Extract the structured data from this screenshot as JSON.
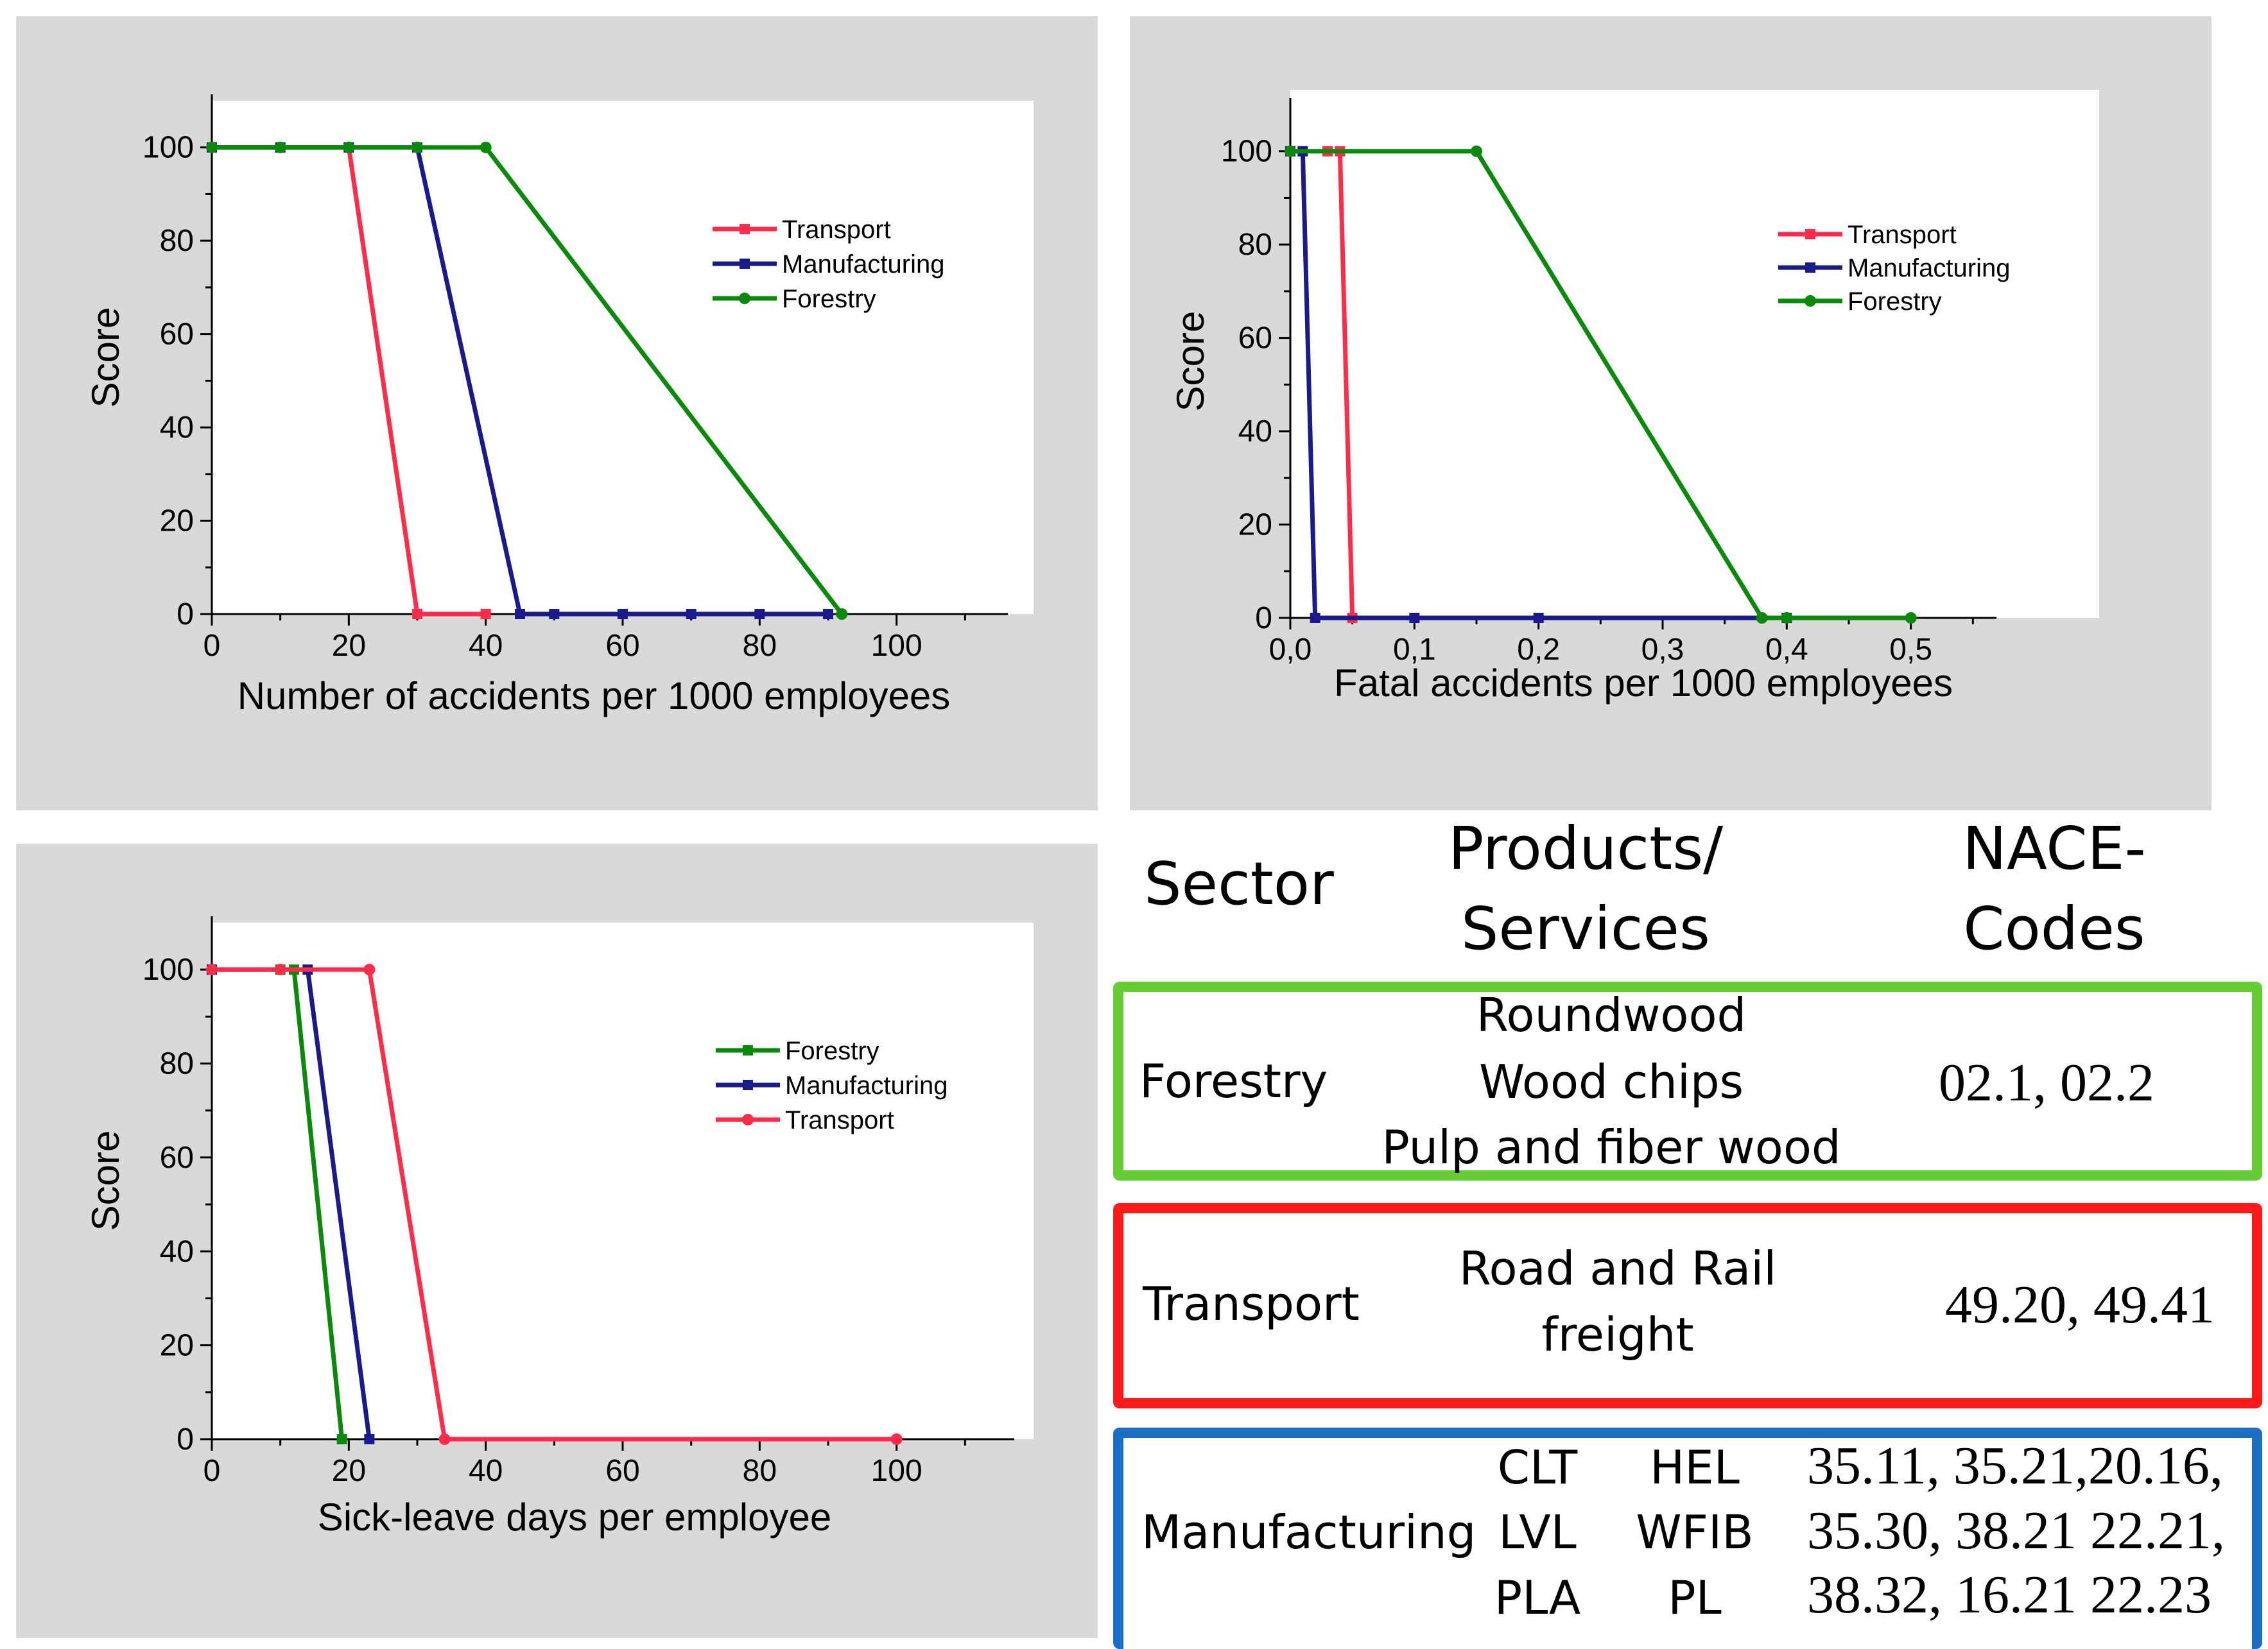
{
  "chart_data": [
    {
      "type": "line",
      "panel": "top-left",
      "xlabel": "Number of accidents per 1000 employees",
      "ylabel": "Score",
      "xlim": [
        0,
        120
      ],
      "ylim": [
        0,
        110
      ],
      "xticks": [
        0,
        20,
        40,
        60,
        80,
        100
      ],
      "yticks": [
        0,
        20,
        40,
        60,
        80,
        100
      ],
      "legend_position": "top-right",
      "series": [
        {
          "name": "Transport",
          "color": "#ff2b4a",
          "marker": "square",
          "points": [
            [
              0,
              100
            ],
            [
              10,
              100
            ],
            [
              20,
              100
            ],
            [
              30,
              0
            ],
            [
              40,
              0
            ]
          ]
        },
        {
          "name": "Manufacturing",
          "color": "#1a1a8c",
          "marker": "square",
          "points": [
            [
              0,
              100
            ],
            [
              10,
              100
            ],
            [
              20,
              100
            ],
            [
              30,
              100
            ],
            [
              45,
              0
            ],
            [
              50,
              0
            ],
            [
              60,
              0
            ],
            [
              70,
              0
            ],
            [
              80,
              0
            ],
            [
              90,
              0
            ]
          ]
        },
        {
          "name": "Forestry",
          "color": "#0a8a0a",
          "marker": "circle",
          "points": [
            [
              0,
              100
            ],
            [
              10,
              100
            ],
            [
              20,
              100
            ],
            [
              30,
              100
            ],
            [
              40,
              100
            ],
            [
              92,
              0
            ]
          ]
        }
      ]
    },
    {
      "type": "line",
      "panel": "top-right",
      "xlabel": "Fatal accidents per 1000 employees",
      "ylabel": "Score",
      "xlim": [
        0,
        0.6
      ],
      "ylim": [
        0,
        110
      ],
      "xticks": [
        0,
        0.1,
        0.2,
        0.3,
        0.4,
        0.5
      ],
      "xtick_labels": [
        "0,0",
        "0,1",
        "0,2",
        "0,3",
        "0,4",
        "0,5"
      ],
      "yticks": [
        0,
        20,
        40,
        60,
        80,
        100
      ],
      "legend_position": "top-right",
      "series": [
        {
          "name": "Transport",
          "color": "#ff2b4a",
          "marker": "square",
          "points": [
            [
              0.03,
              100
            ],
            [
              0.04,
              100
            ],
            [
              0.05,
              0
            ]
          ]
        },
        {
          "name": "Manufacturing",
          "color": "#1a1a8c",
          "marker": "square",
          "points": [
            [
              0,
              100
            ],
            [
              0.01,
              100
            ],
            [
              0.02,
              0
            ],
            [
              0.1,
              0
            ],
            [
              0.2,
              0
            ],
            [
              0.4,
              0
            ]
          ]
        },
        {
          "name": "Forestry",
          "color": "#0a8a0a",
          "marker": "circle",
          "points": [
            [
              0,
              100
            ],
            [
              0.15,
              100
            ],
            [
              0.38,
              0
            ],
            [
              0.4,
              0
            ],
            [
              0.5,
              0
            ]
          ]
        }
      ]
    },
    {
      "type": "line",
      "panel": "bottom-left",
      "xlabel": "Sick-leave days per employee",
      "ylabel": "Score",
      "xlim": [
        0,
        120
      ],
      "ylim": [
        0,
        110
      ],
      "xticks": [
        0,
        20,
        40,
        60,
        80,
        100
      ],
      "yticks": [
        0,
        20,
        40,
        60,
        80,
        100
      ],
      "legend_position": "top-right",
      "series": [
        {
          "name": "Forestry",
          "color": "#0a8a0a",
          "marker": "square",
          "points": [
            [
              0,
              100
            ],
            [
              10,
              100
            ],
            [
              12,
              100
            ],
            [
              19,
              0
            ]
          ]
        },
        {
          "name": "Manufacturing",
          "color": "#1a1a8c",
          "marker": "square",
          "points": [
            [
              0,
              100
            ],
            [
              14,
              100
            ],
            [
              23,
              0
            ]
          ]
        },
        {
          "name": "Transport",
          "color": "#ff2b4a",
          "marker": "circle",
          "points": [
            [
              0,
              100
            ],
            [
              10,
              100
            ],
            [
              23,
              100
            ],
            [
              34,
              0
            ],
            [
              100,
              0
            ]
          ]
        }
      ]
    }
  ],
  "table": {
    "headers": {
      "sector": "Sector",
      "products_line1": "Products/",
      "products_line2": "Services",
      "codes_line1": "NACE-",
      "codes_line2": "Codes"
    },
    "rows": [
      {
        "sector": "Forestry",
        "border_color": "#66cc33",
        "products": [
          "Roundwood",
          "Wood chips",
          "Pulp and fiber wood"
        ],
        "codes": [
          "02.1, 02.2"
        ]
      },
      {
        "sector": "Transport",
        "border_color": "#ff1a1a",
        "products": [
          "Road and Rail",
          "freight"
        ],
        "codes": [
          "49.20, 49.41"
        ]
      },
      {
        "sector": "Manufacturing",
        "border_color": "#1a6fc4",
        "products_col1": [
          "CLT",
          "LVL",
          "PLA"
        ],
        "products_col2": [
          "HEL",
          "WFIB",
          "PL"
        ],
        "codes": [
          "35.11, 35.21,20.16,",
          "35.30, 38.21 22.21,",
          "38.32, 16.21 22.23"
        ]
      }
    ]
  }
}
